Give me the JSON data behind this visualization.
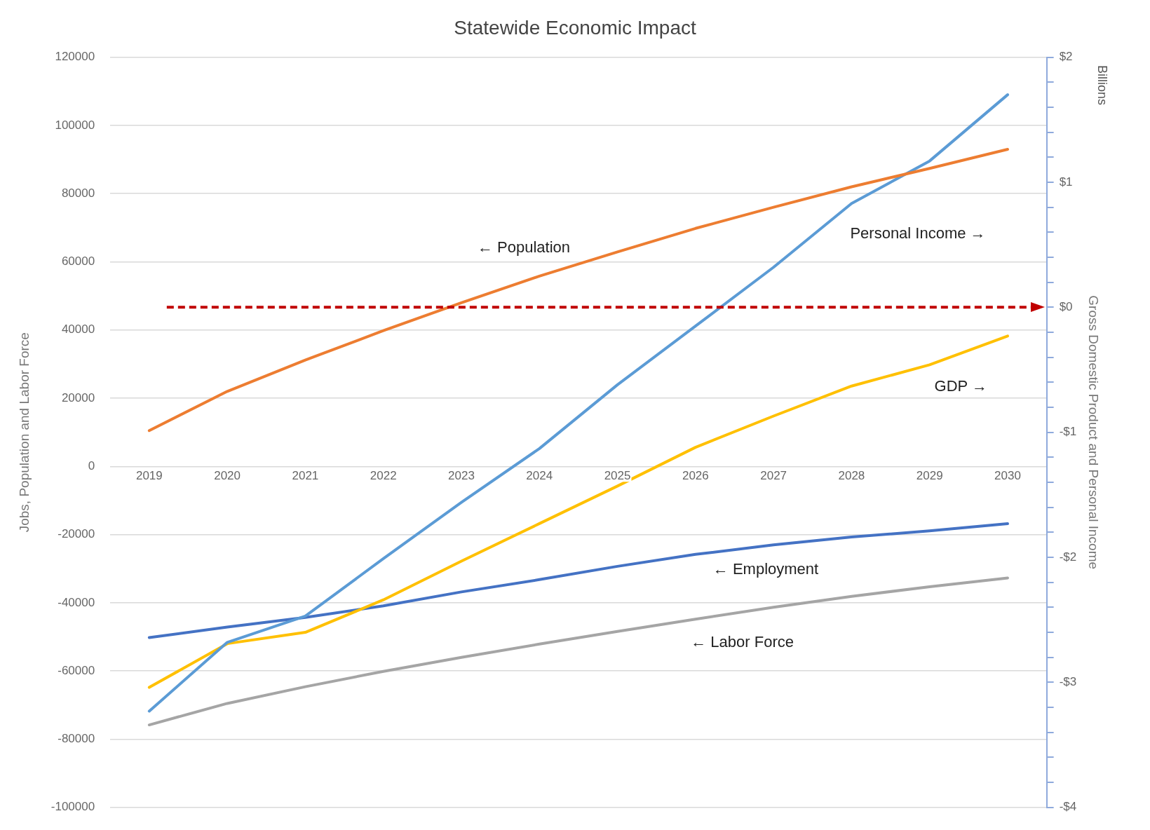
{
  "chart_data": {
    "type": "line",
    "title": "Statewide Economic Impact",
    "ylabel": "Jobs, Population and Labor Force",
    "y2label": "Gross Domestic Product and Personal Income",
    "annotations": [
      "Billions"
    ],
    "categories": [
      "2019",
      "2020",
      "2021",
      "2022",
      "2023",
      "2024",
      "2025",
      "2026",
      "2027",
      "2028",
      "2029",
      "2030"
    ],
    "series": [
      {
        "name": "← Population",
        "color": "#ed7d31",
        "values": [
          10500,
          22000,
          31200,
          39800,
          48000,
          55800,
          62900,
          69800,
          76000,
          82000,
          87400,
          93000
        ]
      },
      {
        "name": "Personal Income →",
        "color": "#5b9bd5",
        "axis": "y2",
        "values": [
          -3.23,
          -2.68,
          -2.47,
          -2.01,
          -1.56,
          -1.13,
          -0.62,
          -0.15,
          0.32,
          0.83,
          1.17,
          1.7
        ]
      },
      {
        "name": "GDP →",
        "color": "#ffc000",
        "axis": "y2",
        "values": [
          -3.04,
          -2.69,
          -2.6,
          -2.34,
          -2.03,
          -1.73,
          -1.43,
          -1.12,
          -0.87,
          -0.63,
          -0.46,
          -0.23
        ]
      },
      {
        "name": "← Employment",
        "color": "#4472c4",
        "values": [
          -50200,
          -47100,
          -44300,
          -40900,
          -36800,
          -33200,
          -29300,
          -25800,
          -23000,
          -20700,
          -18900,
          -16800
        ]
      },
      {
        "name": "← Labor Force",
        "color": "#a5a5a5",
        "values": [
          -75800,
          -69500,
          -64600,
          -60100,
          -56000,
          -52100,
          -48400,
          -44800,
          -41300,
          -38100,
          -35300,
          -32700
        ]
      }
    ],
    "ylim": [
      -100000,
      120000
    ],
    "yticks": [
      -100000,
      -80000,
      -60000,
      -40000,
      -20000,
      0,
      20000,
      40000,
      60000,
      80000,
      100000,
      120000
    ],
    "y2lim": [
      -4,
      2
    ],
    "y2ticks": [
      {
        "value": -4,
        "label": "-$4"
      },
      {
        "value": -3.8,
        "label": null
      },
      {
        "value": -3.6,
        "label": null
      },
      {
        "value": -3.4,
        "label": null
      },
      {
        "value": -3.2,
        "label": null
      },
      {
        "value": -3,
        "label": "-$3"
      },
      {
        "value": -2.8,
        "label": null
      },
      {
        "value": -2.6,
        "label": null
      },
      {
        "value": -2.4,
        "label": null
      },
      {
        "value": -2.2,
        "label": null
      },
      {
        "value": -2,
        "label": "-$2"
      },
      {
        "value": -1.8,
        "label": null
      },
      {
        "value": -1.6,
        "label": null
      },
      {
        "value": -1.4,
        "label": null
      },
      {
        "value": -1.2,
        "label": null
      },
      {
        "value": -1,
        "label": "-$1"
      },
      {
        "value": -0.8,
        "label": null
      },
      {
        "value": -0.6,
        "label": null
      },
      {
        "value": -0.4,
        "label": null
      },
      {
        "value": -0.2,
        "label": null
      },
      {
        "value": 0,
        "label": "$0"
      },
      {
        "value": 0.2,
        "label": null
      },
      {
        "value": 0.4,
        "label": null
      },
      {
        "value": 0.6,
        "label": null
      },
      {
        "value": 0.8,
        "label": null
      },
      {
        "value": 1,
        "label": "$1"
      },
      {
        "value": 1.2,
        "label": null
      },
      {
        "value": 1.4,
        "label": null
      },
      {
        "value": 1.6,
        "label": null
      },
      {
        "value": 1.8,
        "label": null
      },
      {
        "value": 2,
        "label": "$2"
      }
    ],
    "ref_lines": [
      {
        "axis": "y2",
        "value": 0,
        "color": "#c00000",
        "line_style": "dashed"
      }
    ],
    "grid": "y",
    "legend": false,
    "marker": "none",
    "line_style": "solid"
  }
}
